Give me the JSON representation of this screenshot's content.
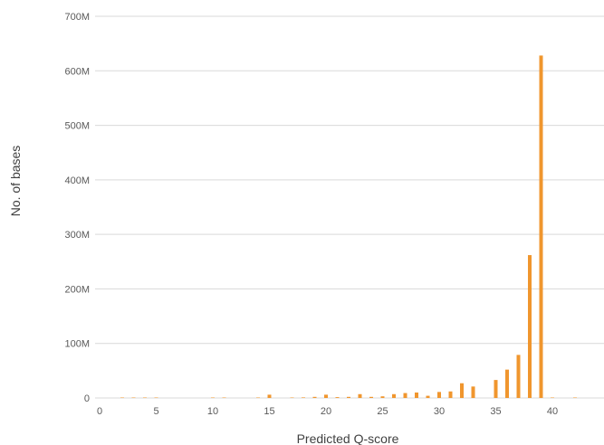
{
  "chart_data": {
    "type": "bar",
    "title": "",
    "xlabel": "Predicted Q-score",
    "ylabel": "No. of bases",
    "x_ticks": [
      0,
      5,
      10,
      15,
      20,
      25,
      30,
      35,
      40
    ],
    "y_ticks": [
      0,
      100,
      200,
      300,
      400,
      500,
      600,
      700
    ],
    "y_tick_labels": [
      "0",
      "100M",
      "200M",
      "300M",
      "400M",
      "500M",
      "600M",
      "700M"
    ],
    "xlim": [
      0,
      44
    ],
    "ylim": [
      0,
      700
    ],
    "y_unit": "millions",
    "grid": true,
    "bar_color": "#f0962e",
    "x": [
      2,
      3,
      4,
      5,
      10,
      11,
      14,
      15,
      17,
      18,
      19,
      20,
      21,
      22,
      23,
      24,
      25,
      26,
      27,
      28,
      29,
      30,
      31,
      32,
      33,
      35,
      36,
      37,
      38,
      39,
      40,
      42
    ],
    "values": [
      0.8,
      0.8,
      0.8,
      0.8,
      0.8,
      0.8,
      0.8,
      6,
      0.8,
      1,
      2,
      6,
      1.5,
      2,
      7,
      2,
      3,
      7,
      9,
      10,
      4,
      11,
      12,
      27,
      21,
      33,
      52,
      79,
      262,
      628,
      0.8,
      0.8
    ]
  }
}
